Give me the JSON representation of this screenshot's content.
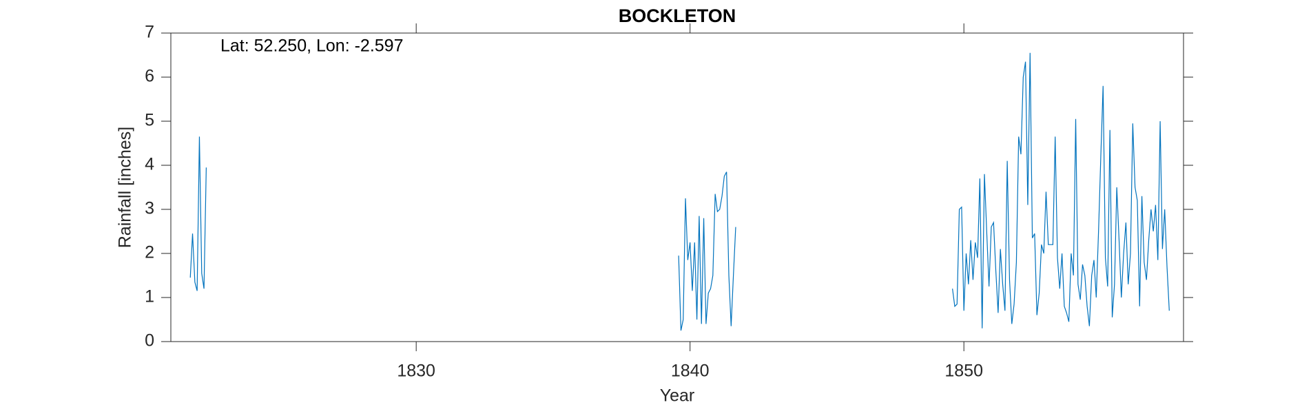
{
  "chart_data": {
    "type": "line",
    "title": "BOCKLETON",
    "annotation": "Lat: 52.250, Lon: -2.597",
    "xlabel": "Year",
    "ylabel": "Rainfall [inches]",
    "xlim": [
      1821.04,
      1858.02
    ],
    "xticks": [
      1830,
      1840,
      1850
    ],
    "ylim": [
      0,
      7
    ],
    "yticks": [
      0,
      1,
      2,
      3,
      4,
      5,
      6,
      7
    ],
    "series": [
      {
        "name": "Rainfall",
        "color": "#0072bd",
        "x": [
          1821.75,
          1821.833,
          1821.917,
          1822.0,
          1822.083,
          1822.167,
          1822.25,
          1822.333,
          1830,
          1839.583,
          1839.667,
          1839.75,
          1839.833,
          1839.917,
          1840.0,
          1840.083,
          1840.167,
          1840.25,
          1840.333,
          1840.417,
          1840.5,
          1840.583,
          1840.667,
          1840.75,
          1840.833,
          1840.917,
          1841.0,
          1841.083,
          1841.167,
          1841.25,
          1841.333,
          1841.417,
          1841.5,
          1841.583,
          1841.667,
          1845,
          1849.583,
          1849.667,
          1849.75,
          1849.833,
          1849.917,
          1850.0,
          1850.083,
          1850.167,
          1850.25,
          1850.333,
          1850.417,
          1850.5,
          1850.583,
          1850.667,
          1850.75,
          1850.833,
          1850.917,
          1851.0,
          1851.083,
          1851.167,
          1851.25,
          1851.333,
          1851.417,
          1851.5,
          1851.583,
          1851.667,
          1851.75,
          1851.833,
          1851.917,
          1852.0,
          1852.083,
          1852.167,
          1852.25,
          1852.333,
          1852.417,
          1852.5,
          1852.583,
          1852.667,
          1852.75,
          1852.833,
          1852.917,
          1853.0,
          1853.083,
          1853.167,
          1853.25,
          1853.333,
          1853.417,
          1853.5,
          1853.583,
          1853.667,
          1853.75,
          1853.833,
          1853.917,
          1854.0,
          1854.083,
          1854.167,
          1854.25,
          1854.333,
          1854.417,
          1854.5,
          1854.583,
          1854.667,
          1854.75,
          1854.833,
          1854.917,
          1855.0,
          1855.083,
          1855.167,
          1855.25,
          1855.333,
          1855.417,
          1855.5,
          1855.583,
          1855.667,
          1855.75,
          1855.833,
          1855.917,
          1856.0,
          1856.083,
          1856.167,
          1856.25,
          1856.333,
          1856.417,
          1856.5,
          1856.583,
          1856.667,
          1856.75,
          1856.833,
          1856.917,
          1857.0,
          1857.083,
          1857.167,
          1857.25,
          1857.333,
          1857.417,
          1857.5
        ],
        "values": [
          1.45,
          2.45,
          1.35,
          1.15,
          4.65,
          1.55,
          1.2,
          3.95,
          null,
          1.95,
          0.25,
          0.5,
          3.25,
          1.85,
          2.25,
          1.15,
          2.25,
          0.5,
          2.85,
          0.4,
          2.8,
          0.4,
          1.1,
          1.2,
          1.5,
          3.35,
          2.95,
          3.0,
          3.3,
          3.75,
          3.85,
          1.5,
          0.35,
          1.5,
          2.6,
          null,
          1.2,
          0.8,
          0.85,
          3.0,
          3.05,
          0.7,
          2.0,
          1.3,
          2.3,
          1.4,
          2.25,
          1.9,
          3.7,
          0.3,
          3.8,
          2.5,
          1.25,
          2.6,
          2.7,
          1.6,
          0.65,
          2.1,
          1.3,
          0.7,
          4.1,
          1.4,
          0.4,
          0.85,
          1.8,
          4.65,
          4.25,
          6.0,
          6.35,
          3.1,
          6.55,
          2.35,
          2.45,
          0.6,
          1.1,
          2.2,
          2.0,
          3.4,
          2.2,
          2.2,
          2.2,
          4.65,
          1.9,
          1.2,
          2.0,
          0.8,
          0.65,
          0.45,
          2.0,
          1.5,
          5.05,
          1.3,
          0.95,
          1.75,
          1.5,
          0.8,
          0.35,
          1.5,
          1.85,
          1.0,
          2.5,
          4.2,
          5.8,
          1.9,
          1.25,
          4.8,
          0.55,
          1.3,
          3.5,
          2.3,
          1.0,
          2.0,
          2.7,
          1.3,
          2.0,
          4.95,
          3.5,
          3.2,
          0.8,
          3.3,
          1.8,
          1.4,
          2.3,
          3.0,
          2.5,
          3.1,
          1.85,
          5.0,
          2.1,
          3.0,
          1.7,
          0.7
        ]
      }
    ]
  }
}
